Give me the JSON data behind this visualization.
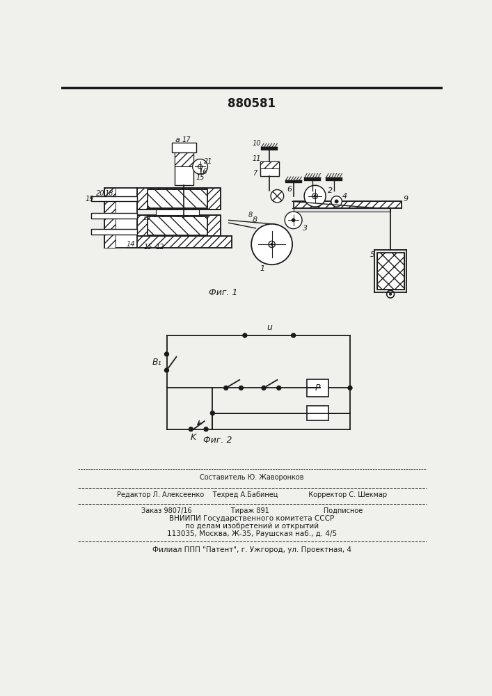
{
  "patent_number": "880581",
  "fig1_caption": "Фиг. 1",
  "fig2_caption": "Фиг. 2",
  "background_color": "#f0f0ed",
  "line_color": "#1a1a1a",
  "footer_line1": "Редактор Л. Алексеенко    Техред А.Бабинец              Корректор С. Шекмар",
  "footer_line1b": "Составитель Ю. Жаворонков",
  "footer_line2": "Заказ 9807/16                  Тираж 891                         Подписное",
  "footer_line3": "ВНИИПИ Государственного комитета СССР",
  "footer_line4": "по делам изобретений и открытий",
  "footer_line5": "113035, Москва, Ж-35, Раушская наб., д. 4/5",
  "footer_line6": "Филиал ППП \"Патент\", г. Ужгород, ул. Проектная, 4"
}
